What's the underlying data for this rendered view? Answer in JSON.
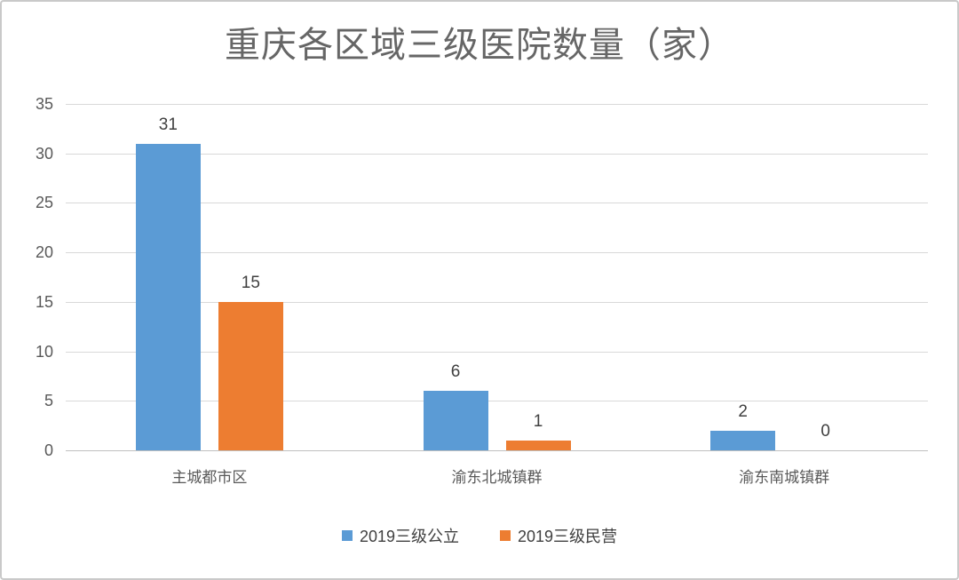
{
  "chart_data": {
    "type": "bar",
    "title": "重庆各区域三级医院数量（家）",
    "categories": [
      "主城都市区",
      "渝东北城镇群",
      "渝东南城镇群"
    ],
    "series": [
      {
        "name": "2019三级公立",
        "color": "#5B9BD5",
        "values": [
          31,
          6,
          2
        ]
      },
      {
        "name": "2019三级民营",
        "color": "#ED7D31",
        "values": [
          15,
          1,
          0
        ]
      }
    ],
    "ylim": [
      0,
      35
    ],
    "yticks": [
      0,
      5,
      10,
      15,
      20,
      25,
      30,
      35
    ],
    "grid": true,
    "data_labels": true,
    "legend_position": "bottom",
    "colors": {
      "gridline": "#D9D9D9",
      "axis_line": "#BFBFBF",
      "axis_label": "#595959",
      "data_label": "#404040",
      "title": "#666666",
      "legend_text": "#404040",
      "background": "#FFFFFF",
      "frame_border": "#C9C9C9"
    }
  }
}
